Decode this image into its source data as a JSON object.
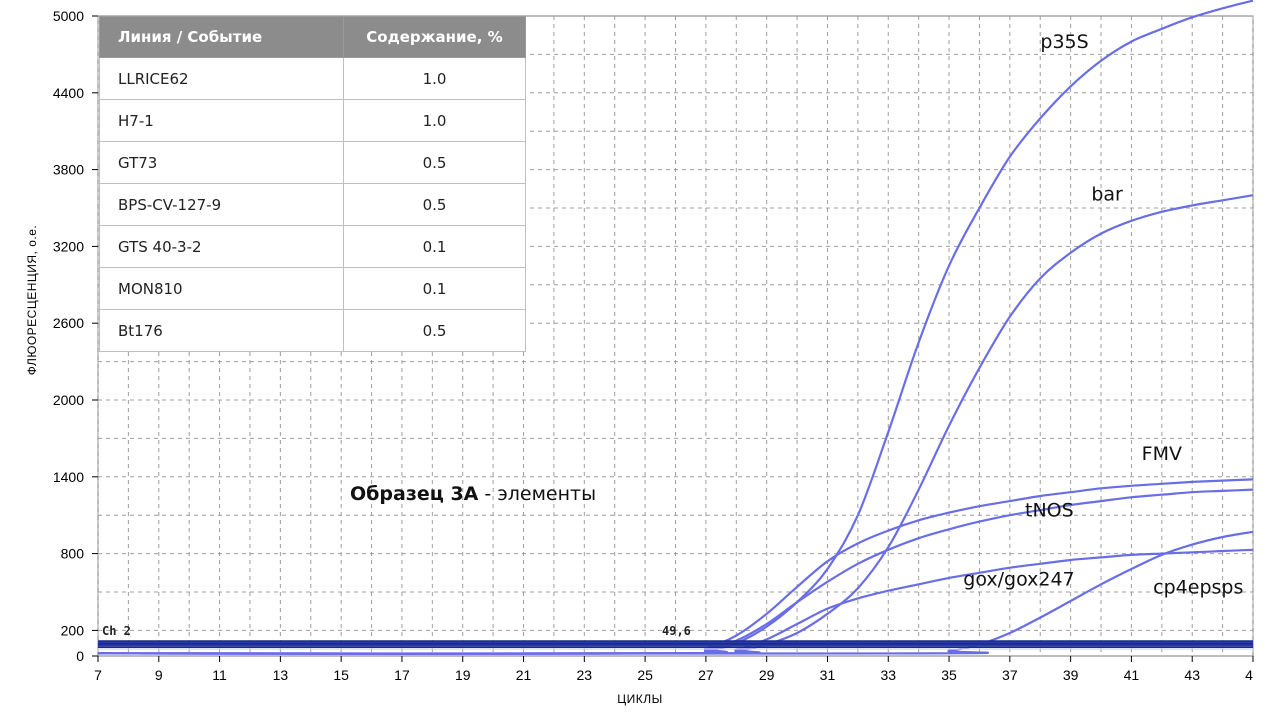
{
  "chart_data": {
    "type": "line",
    "xlabel": "ЦИКЛЫ",
    "ylabel": "ФЛЮОРЕСЦЕНЦИЯ, о.е.",
    "xlim": [
      7,
      45
    ],
    "ylim": [
      0,
      5000
    ],
    "x_ticks": [
      "7",
      "9",
      "11",
      "13",
      "15",
      "17",
      "19",
      "21",
      "23",
      "25",
      "27",
      "29",
      "31",
      "33",
      "35",
      "37",
      "39",
      "41",
      "43",
      "4"
    ],
    "y_ticks": [
      "0",
      "200",
      "800",
      "1400",
      "2000",
      "2600",
      "3200",
      "3800",
      "4400",
      "5000"
    ],
    "y_tick_values": [
      0,
      200,
      800,
      1400,
      2000,
      2600,
      3200,
      3800,
      4400,
      5000
    ],
    "grid": true,
    "series": [
      {
        "name": "p35S",
        "x": [
          7,
          26,
          27,
          28,
          29,
          30,
          31,
          32,
          33,
          34,
          35,
          36,
          37,
          38,
          39,
          40,
          41,
          42,
          43,
          44,
          45
        ],
        "y": [
          20,
          20,
          40,
          100,
          230,
          420,
          680,
          1100,
          1750,
          2450,
          3050,
          3500,
          3900,
          4200,
          4450,
          4650,
          4800,
          4900,
          4990,
          5060,
          5120
        ]
      },
      {
        "name": "bar",
        "x": [
          7,
          27,
          28,
          29,
          30,
          31,
          32,
          33,
          34,
          35,
          36,
          37,
          38,
          39,
          40,
          41,
          42,
          43,
          44,
          45
        ],
        "y": [
          20,
          20,
          40,
          90,
          180,
          330,
          530,
          850,
          1300,
          1800,
          2250,
          2650,
          2950,
          3150,
          3300,
          3400,
          3470,
          3520,
          3560,
          3600
        ]
      },
      {
        "name": "FMV",
        "x": [
          7,
          26,
          27,
          28,
          29,
          30,
          31,
          32,
          33,
          34,
          35,
          36,
          37,
          38,
          39,
          40,
          41,
          42,
          43,
          44,
          45
        ],
        "y": [
          20,
          20,
          60,
          160,
          330,
          540,
          740,
          880,
          980,
          1060,
          1120,
          1170,
          1210,
          1250,
          1280,
          1310,
          1330,
          1345,
          1360,
          1370,
          1380
        ]
      },
      {
        "name": "tNOS",
        "x": [
          7,
          26,
          27,
          28,
          29,
          30,
          31,
          32,
          33,
          34,
          35,
          36,
          37,
          38,
          39,
          40,
          41,
          42,
          43,
          44,
          45
        ],
        "y": [
          20,
          20,
          50,
          120,
          250,
          420,
          580,
          720,
          830,
          920,
          990,
          1050,
          1100,
          1140,
          1180,
          1210,
          1240,
          1260,
          1280,
          1290,
          1300
        ]
      },
      {
        "name": "gox/gox247",
        "x": [
          7,
          27,
          28,
          29,
          30,
          31,
          32,
          33,
          34,
          35,
          36,
          37,
          38,
          39,
          40,
          41,
          42,
          43,
          44,
          45
        ],
        "y": [
          20,
          20,
          50,
          130,
          250,
          370,
          450,
          510,
          560,
          610,
          650,
          690,
          720,
          750,
          770,
          790,
          800,
          810,
          820,
          830
        ]
      },
      {
        "name": "cp4epsps",
        "x": [
          7,
          34,
          35,
          36,
          37,
          38,
          39,
          40,
          41,
          42,
          43,
          44,
          45
        ],
        "y": [
          20,
          20,
          40,
          90,
          180,
          300,
          430,
          560,
          680,
          790,
          870,
          930,
          970
        ]
      }
    ],
    "series_color": "#6a6ee6",
    "baseline_color": "#1a2a8a",
    "channel_label": "Ch 2",
    "threshold_label": "49,6",
    "annotation": {
      "bold": "Образец 3А",
      "rest": " - элементы"
    }
  },
  "table": {
    "headers": [
      "Линия / Событие",
      "Содержание, %"
    ],
    "rows": [
      [
        "LLRICE62",
        "1.0"
      ],
      [
        "H7-1",
        "1.0"
      ],
      [
        "GT73",
        "0.5"
      ],
      [
        "BPS-CV-127-9",
        "0.5"
      ],
      [
        "GTS 40-3-2",
        "0.1"
      ],
      [
        "MON810",
        "0.1"
      ],
      [
        "Bt176",
        "0.5"
      ]
    ]
  }
}
